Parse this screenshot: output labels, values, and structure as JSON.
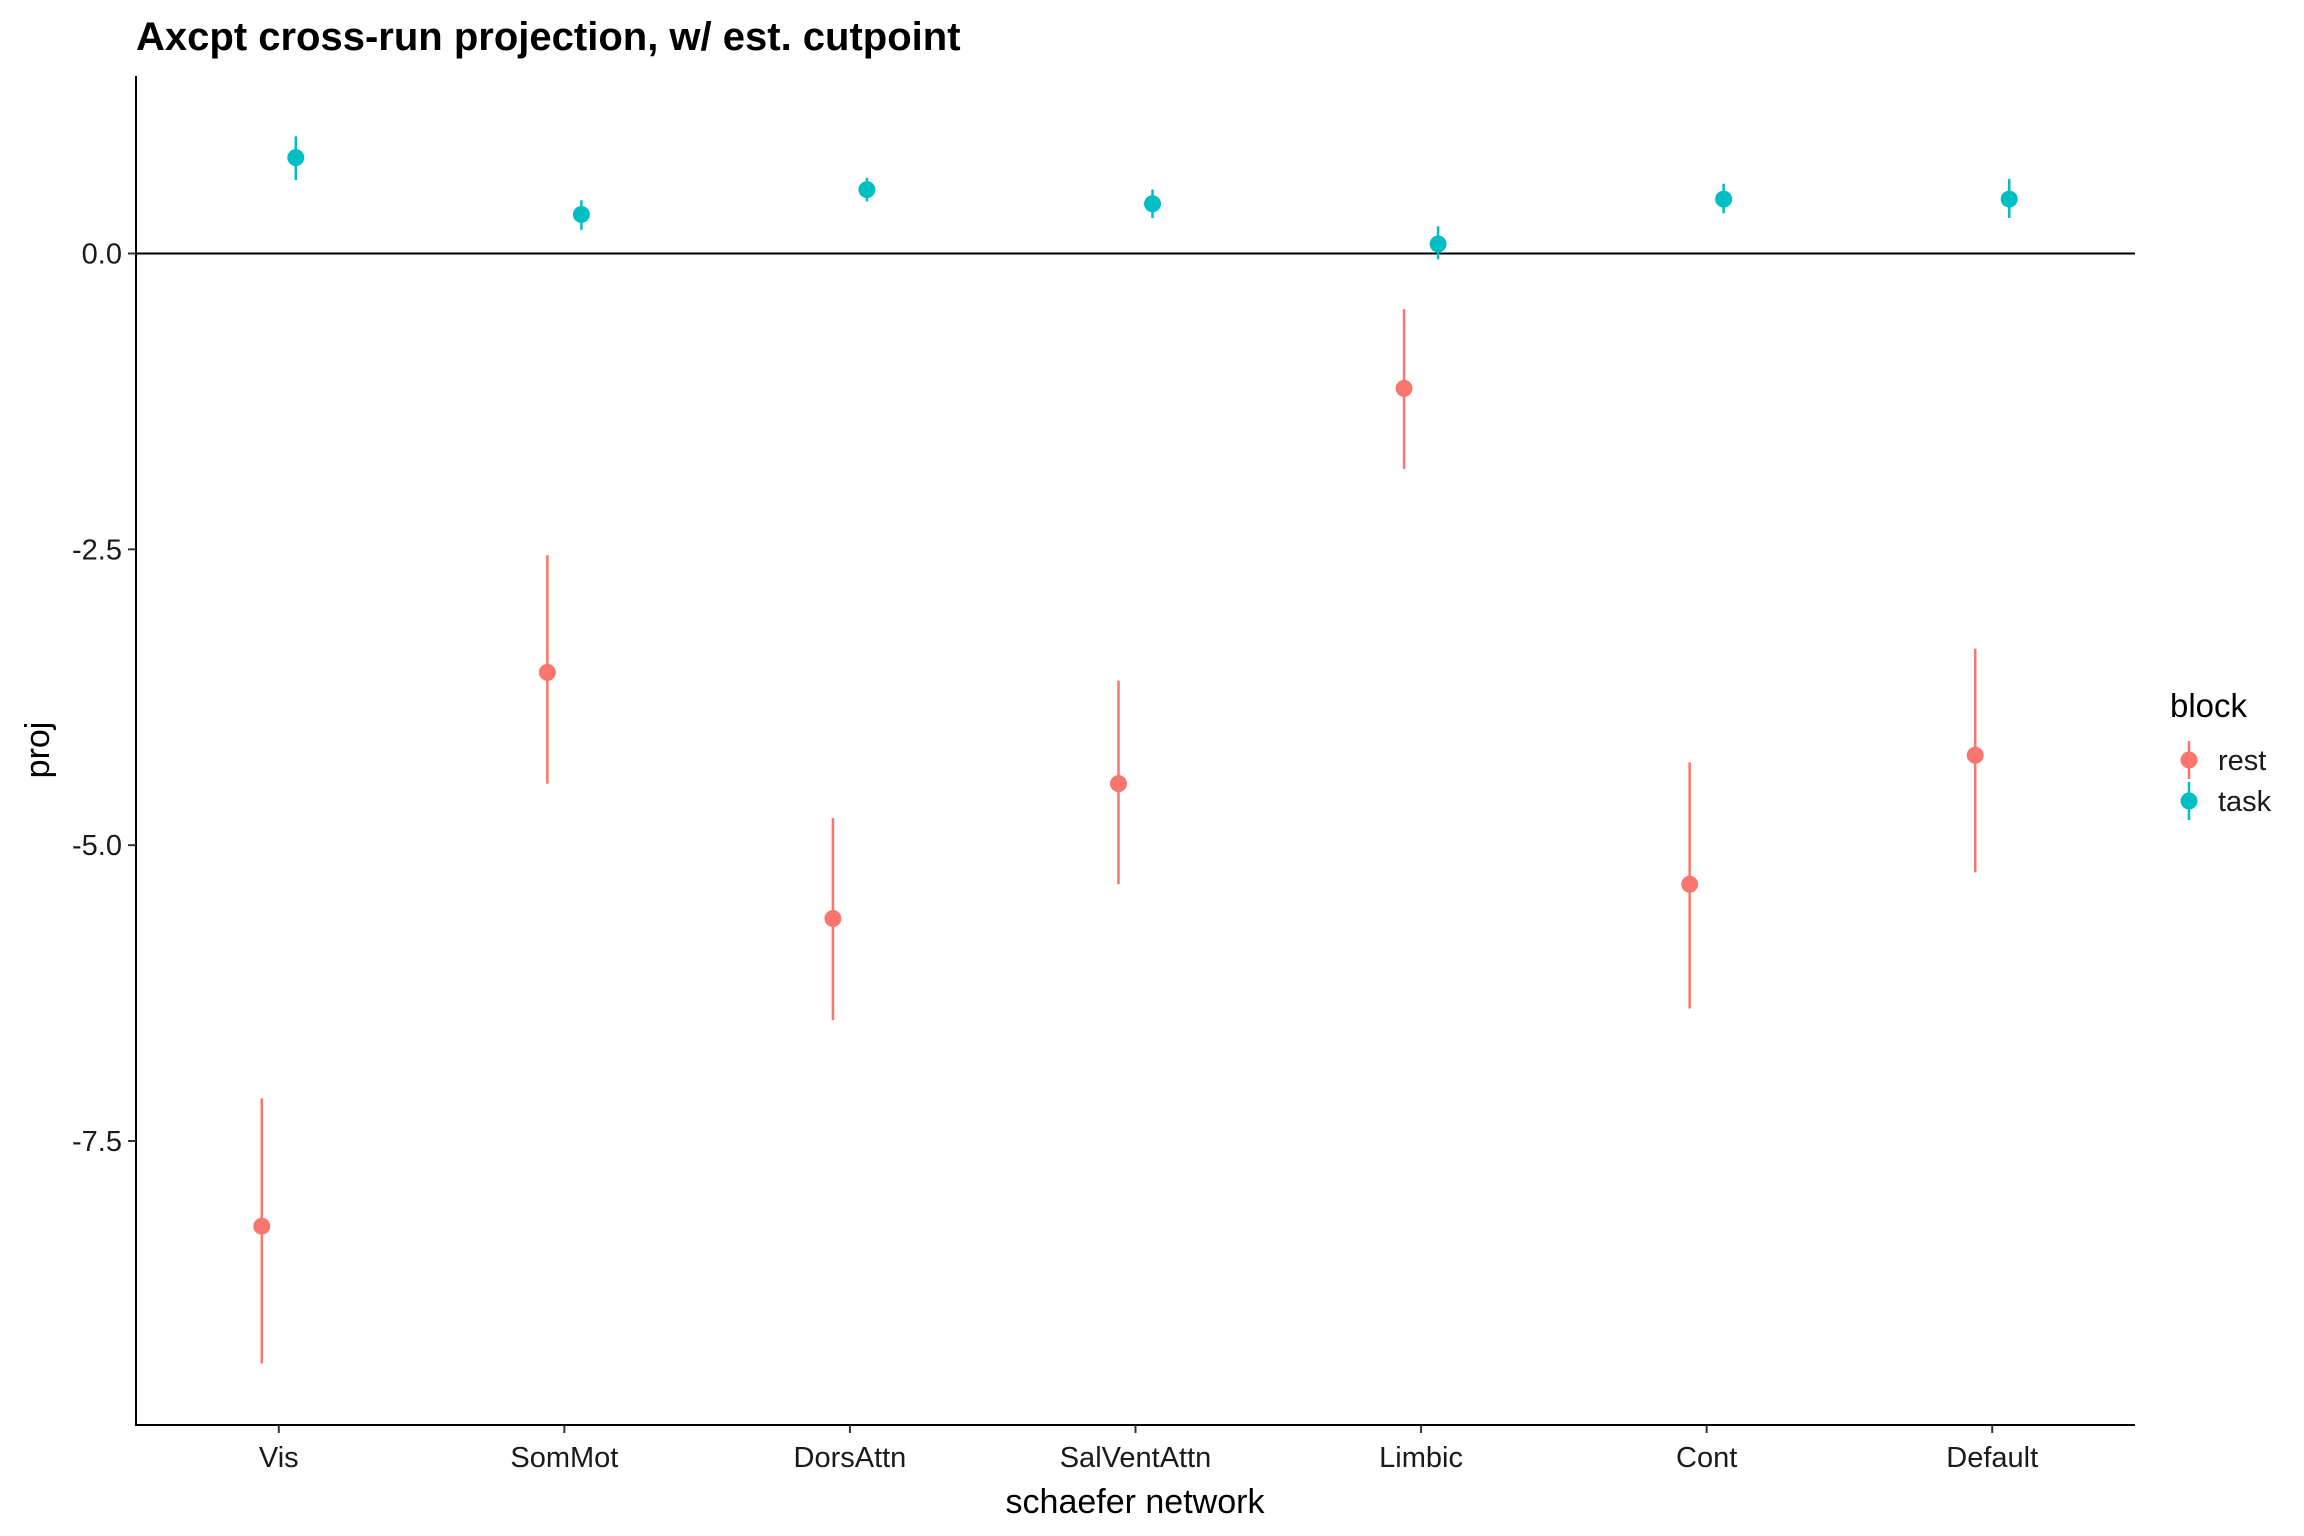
{
  "chart_data": {
    "type": "scatter",
    "title": "Axcpt cross-run projection, w/ est. cutpoint",
    "xlabel": "schaefer network",
    "ylabel": "proj",
    "categories": [
      "Vis",
      "SomMot",
      "DorsAttn",
      "SalVentAttn",
      "Limbic",
      "Cont",
      "Default"
    ],
    "ylim": [
      -9.9,
      1.5
    ],
    "yticks": [
      0.0,
      -2.5,
      -5.0,
      -7.5
    ],
    "ytick_labels": [
      "0.0",
      "-2.5",
      "-5.0",
      "-7.5"
    ],
    "reference_line_y": 0,
    "grid": false,
    "legend": {
      "title": "block",
      "position": "right"
    },
    "series": [
      {
        "name": "rest",
        "color": "#F8766D",
        "values": [
          -8.22,
          -3.54,
          -5.62,
          -4.48,
          -1.14,
          -5.33,
          -4.24
        ],
        "lower": [
          -9.38,
          -4.48,
          -6.48,
          -5.33,
          -1.82,
          -6.38,
          -5.23
        ],
        "upper": [
          -7.14,
          -2.55,
          -4.77,
          -3.61,
          -0.47,
          -4.3,
          -3.34
        ]
      },
      {
        "name": "task",
        "color": "#00BFC4",
        "values": [
          0.81,
          0.33,
          0.54,
          0.42,
          0.08,
          0.46,
          0.46
        ],
        "lower": [
          0.62,
          0.2,
          0.44,
          0.3,
          -0.05,
          0.34,
          0.3
        ],
        "upper": [
          0.99,
          0.45,
          0.64,
          0.54,
          0.23,
          0.59,
          0.63
        ]
      }
    ]
  }
}
